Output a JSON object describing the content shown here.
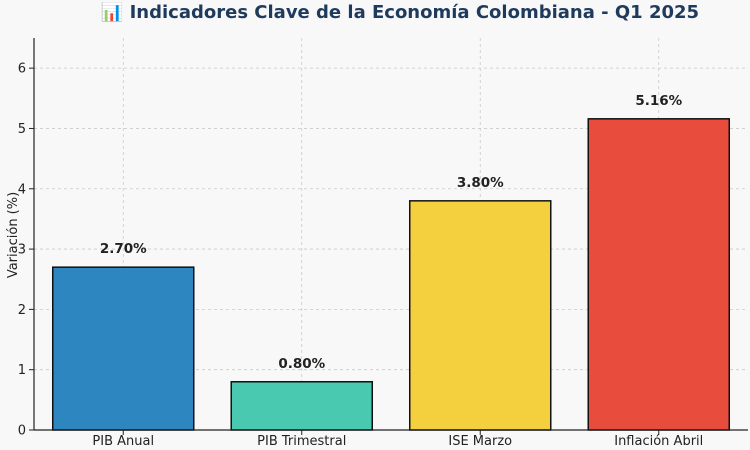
{
  "chart_data": {
    "type": "bar",
    "title": "📊 Indicadores Clave de la Economía Colombiana - Q1 2025",
    "xlabel": "",
    "ylabel": "Variación (%)",
    "ylim": [
      0,
      6.5
    ],
    "yticks": [
      0,
      1,
      2,
      3,
      4,
      5,
      6
    ],
    "grid": true,
    "categories": [
      "PIB Anual",
      "PIB Trimestral",
      "ISE Marzo",
      "Inflación Abril"
    ],
    "values": [
      2.7,
      0.8,
      3.8,
      5.16
    ],
    "value_labels": [
      "2.70%",
      "0.80%",
      "3.80%",
      "5.16%"
    ],
    "colors": [
      "#2e86c1",
      "#48c9b0",
      "#f4d03f",
      "#e74c3c"
    ]
  }
}
